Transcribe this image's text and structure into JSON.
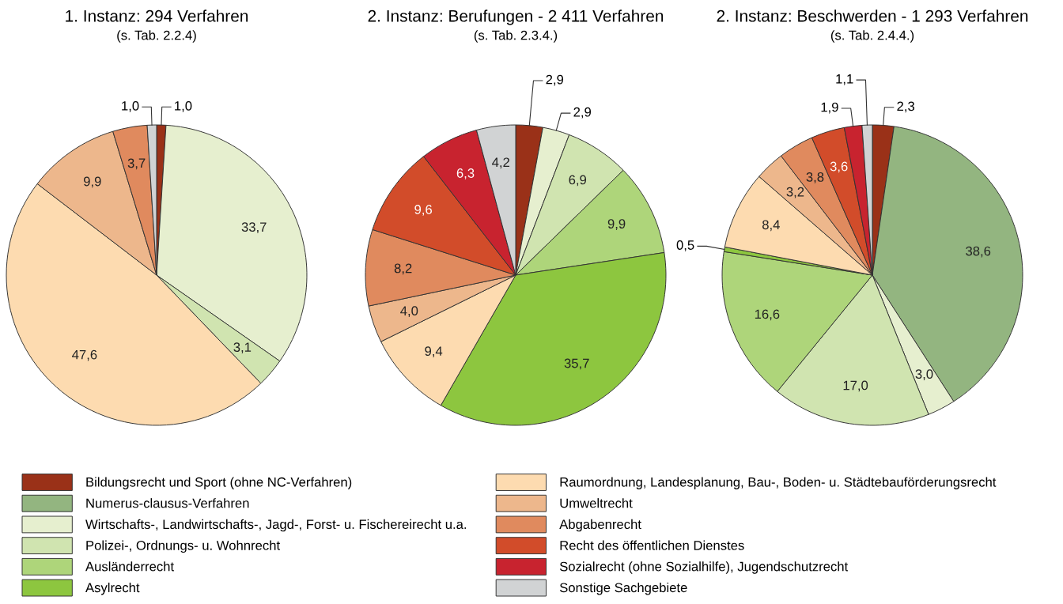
{
  "chart_data": [
    {
      "type": "pie",
      "title": "1. Instanz: 294 Verfahren",
      "subtitle": "(s. Tab. 2.2.4)",
      "legend": "bottom",
      "categories": [
        "Bildungsrecht und Sport (ohne NC-Verfahren)",
        "Numerus-clausus-Verfahren",
        "Wirtschafts-, Landwirtschafts-, Jagd-, Forst- u. Fischereirecht u.a.",
        "Polizei-, Ordnungs- u. Wohnrecht",
        "Ausländerrecht",
        "Asylrecht",
        "Raumordnung, Landesplanung, Bau-, Boden- u. Städtebauförderungsrecht",
        "Umweltrecht",
        "Abgabenrecht",
        "Recht des öffentlichen Dienstes",
        "Sozialrecht (ohne Sozialhilfe), Jugendschutzrecht",
        "Sonstige Sachgebiete"
      ],
      "values": [
        1.0,
        0,
        33.7,
        3.1,
        0,
        0,
        47.6,
        9.9,
        3.7,
        0,
        0,
        1.0
      ],
      "value_labels": [
        "1,0",
        null,
        "33,7",
        "3,1",
        null,
        null,
        "47,6",
        "9,9",
        "3,7",
        null,
        null,
        "1,0"
      ],
      "colors": [
        "#9a3118",
        "#93b580",
        "#e6efcf",
        "#d0e4b0",
        "#aed57a",
        "#8dc63f",
        "#fddbb0",
        "#edb78c",
        "#e08a5e",
        "#d24c2a",
        "#c8232f",
        "#d1d3d4"
      ]
    },
    {
      "type": "pie",
      "title": "2. Instanz: Berufungen - 2 411 Verfahren",
      "subtitle": "(s. Tab. 2.3.4.)",
      "values": [
        2.9,
        0,
        2.9,
        6.9,
        9.9,
        35.7,
        9.4,
        4.0,
        8.2,
        9.6,
        6.3,
        4.2
      ],
      "value_labels": [
        "2,9",
        null,
        "2,9",
        "6,9",
        "9,9",
        "35,7",
        "9,4",
        "4,0",
        "8,2",
        "9,6",
        "6,3",
        "4,2"
      ],
      "colors": [
        "#9a3118",
        "#93b580",
        "#e6efcf",
        "#d0e4b0",
        "#aed57a",
        "#8dc63f",
        "#fddbb0",
        "#edb78c",
        "#e08a5e",
        "#d24c2a",
        "#c8232f",
        "#d1d3d4"
      ]
    },
    {
      "type": "pie",
      "title": "2. Instanz: Beschwerden - 1 293 Verfahren",
      "subtitle": "(s. Tab. 2.4.4.)",
      "values": [
        2.3,
        38.6,
        3.0,
        17.0,
        16.6,
        0.5,
        8.4,
        3.2,
        3.8,
        3.6,
        1.9,
        1.1
      ],
      "value_labels": [
        "2,3",
        "38,6",
        "3,0",
        "17,0",
        "16,6",
        "0,5",
        "8,4",
        "3,2",
        "3,8",
        "3,6",
        "1,9",
        "1,1"
      ],
      "colors": [
        "#9a3118",
        "#93b580",
        "#e6efcf",
        "#d0e4b0",
        "#aed57a",
        "#8dc63f",
        "#fddbb0",
        "#edb78c",
        "#e08a5e",
        "#d24c2a",
        "#c8232f",
        "#d1d3d4"
      ]
    }
  ]
}
